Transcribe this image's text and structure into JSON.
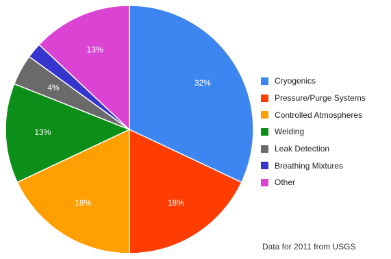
{
  "chart_data": {
    "type": "pie",
    "categories": [
      "Cryogenics",
      "Pressure/Purge Systems",
      "Controlled Atmospheres",
      "Welding",
      "Leak Detection",
      "Breathing Mixtures",
      "Other"
    ],
    "values": [
      32,
      18,
      18,
      13,
      4,
      2,
      13
    ],
    "value_labels": [
      "32%",
      "18%",
      "18%",
      "13%",
      "4%",
      "",
      "13%"
    ],
    "colors": [
      "#3d85f0",
      "#ff3d00",
      "#ff9f00",
      "#0b8f18",
      "#6a6a6a",
      "#3636cf",
      "#db44d3"
    ],
    "label_colors": [
      "#ffffff",
      "#ffffff",
      "#ffffff",
      "#ffffff",
      "#ffffff",
      "#ffffff",
      "#ffffff"
    ],
    "legend_position": "right",
    "title": "",
    "note": "Data for 2011 from USGS"
  }
}
